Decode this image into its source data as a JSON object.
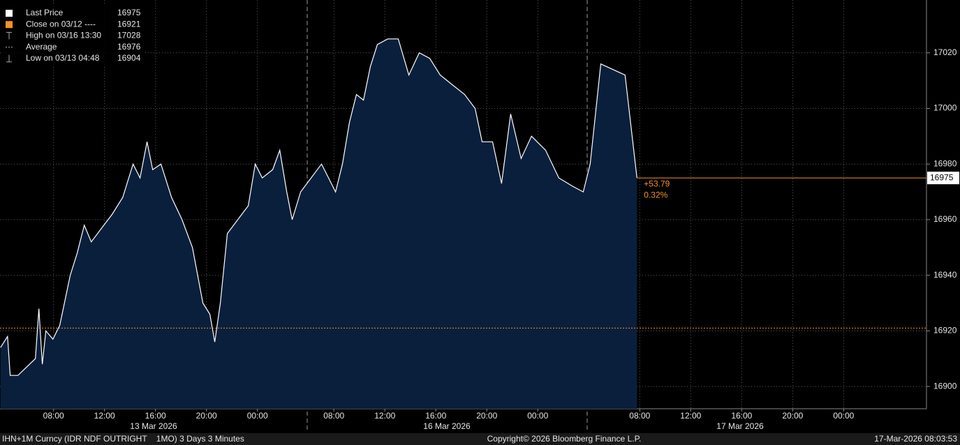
{
  "chart_data": {
    "type": "area",
    "x": [
      3.84,
      4.39,
      4.6,
      5.21,
      6.58,
      6.85,
      7.12,
      7.4,
      7.95,
      8.49,
      9.31,
      9.86,
      10.41,
      10.96,
      11.78,
      12.61,
      13.43,
      14.24,
      14.79,
      15.34,
      15.78,
      16.43,
      17.26,
      18.08,
      18.9,
      19.72,
      20.27,
      20.65,
      21.09,
      21.64,
      22.46,
      23.28,
      23.83,
      24.38,
      25.2,
      25.75,
      26.3,
      26.73,
      27.39,
      28.21,
      29.03,
      29.58,
      30.13,
      30.67,
      31.22,
      31.77,
      32.32,
      32.86,
      33.41,
      34.23,
      35.05,
      35.88,
      36.7,
      37.52,
      38.34,
      39.44,
      40.26,
      41.08,
      41.63,
      42.45,
      43.16,
      43.87,
      44.69,
      45.51,
      46.61,
      47.65,
      48.74,
      49.57,
      50.11,
      50.94,
      52.85,
      53.4,
      53.78
    ],
    "series": [
      {
        "name": "Last Price",
        "color": "#ffffff",
        "values": [
          16914,
          16918,
          16904,
          16904,
          16910,
          16928,
          16908,
          16920,
          16917,
          16922,
          16940,
          16948,
          16958,
          16952,
          16957,
          16962,
          16968,
          16980,
          16975,
          16988,
          16978,
          16980,
          16968,
          16960,
          16950,
          16930,
          16926,
          16916,
          16930,
          16955,
          16960,
          16965,
          16980,
          16975,
          16978,
          16985,
          16970,
          16960,
          16970,
          16975,
          16980,
          16975,
          16970,
          16980,
          16995,
          17005,
          17003,
          17015,
          17023,
          17025,
          17025,
          17012,
          17020,
          17018,
          17012,
          17008,
          17005,
          17000,
          16988,
          16988,
          16973,
          16998,
          16982,
          16990,
          16985,
          16975,
          16972,
          16970,
          16980,
          17016,
          17012,
          16990,
          16975
        ]
      }
    ],
    "xlim": [
      3.8,
      76.5
    ],
    "xticks": [
      {
        "value": 8,
        "label": "08:00"
      },
      {
        "value": 12,
        "label": "12:00"
      },
      {
        "value": 16,
        "label": "16:00"
      },
      {
        "value": 20,
        "label": "20:00"
      },
      {
        "value": 24,
        "label": "00:00"
      },
      {
        "value": 30,
        "label": "08:00"
      },
      {
        "value": 34,
        "label": "12:00"
      },
      {
        "value": 38,
        "label": "16:00"
      },
      {
        "value": 42,
        "label": "20:00"
      },
      {
        "value": 46,
        "label": "00:00"
      },
      {
        "value": 54,
        "label": "08:00"
      },
      {
        "value": 58,
        "label": "12:00"
      },
      {
        "value": 62,
        "label": "16:00"
      },
      {
        "value": 66,
        "label": "20:00"
      },
      {
        "value": 70,
        "label": "00:00"
      }
    ],
    "date_labels": [
      "13 Mar 2026",
      "16 Mar 2026",
      "17 Mar 2026"
    ],
    "ylim": [
      16892,
      17039
    ],
    "yticks": [
      16900,
      16920,
      16940,
      16960,
      16980,
      17000,
      17020
    ],
    "grid": true,
    "legend": [
      {
        "label": "Last Price",
        "value": 16975
      },
      {
        "label": "Close on 03/12 ----",
        "value": 16921
      },
      {
        "label": "High on 03/16 13:30",
        "value": 17028
      },
      {
        "label": "Average",
        "value": 16976
      },
      {
        "label": "Low on 03/13 04:48",
        "value": 16904
      }
    ],
    "change_label": "+53.79",
    "change_pct_label": "0.32%",
    "fill_color": "#0a1f3c",
    "close_color": "#f7931e",
    "footer": {
      "left": "IHN+1M Curncy (IDR NDF OUTRIGHT    1MO) 3 Days 3 Minutes",
      "center": "Copyright© 2026 Bloomberg Finance L.P.",
      "right": "17-Mar-2026 08:03:53"
    }
  }
}
